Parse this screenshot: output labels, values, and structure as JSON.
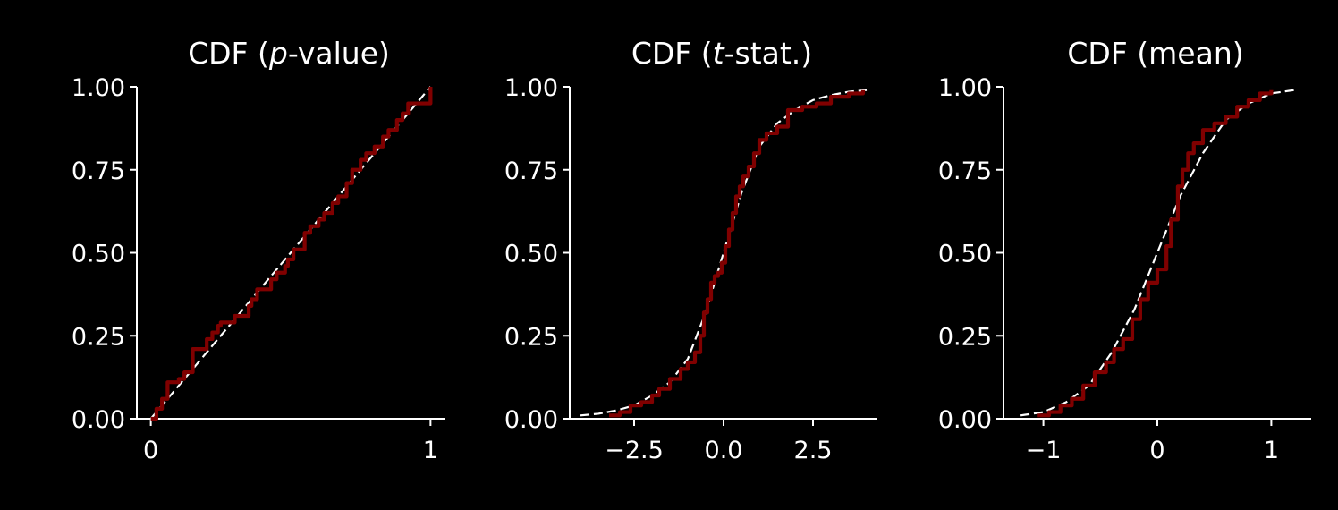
{
  "colors": {
    "background": "#000000",
    "axes": "#ffffff",
    "empirical": "#800000",
    "theoretical": "#ffffff"
  },
  "chart_data": [
    {
      "type": "line",
      "title": "CDF (p-value)",
      "title_parts": [
        "CDF (",
        "p",
        "-value)"
      ],
      "xlim": [
        -0.05,
        1.05
      ],
      "ylim": [
        0,
        1
      ],
      "xticks": [
        0,
        1
      ],
      "xtick_labels": [
        "0",
        "1"
      ],
      "yticks": [
        0,
        0.25,
        0.5,
        0.75,
        1
      ],
      "ytick_labels": [
        "0.00",
        "0.25",
        "0.50",
        "0.75",
        "1.00"
      ],
      "grid": false,
      "series": [
        {
          "style": "dashed",
          "color": "#ffffff",
          "x": [
            0,
            1
          ],
          "y": [
            0,
            1
          ]
        },
        {
          "style": "step",
          "color": "#800000",
          "x": [
            0.0,
            0.02,
            0.04,
            0.06,
            0.06,
            0.1,
            0.12,
            0.15,
            0.15,
            0.2,
            0.22,
            0.24,
            0.25,
            0.3,
            0.35,
            0.36,
            0.38,
            0.43,
            0.45,
            0.48,
            0.49,
            0.51,
            0.55,
            0.57,
            0.6,
            0.62,
            0.65,
            0.67,
            0.7,
            0.72,
            0.75,
            0.77,
            0.8,
            0.83,
            0.85,
            0.88,
            0.9,
            0.92,
            0.97,
            1.0
          ],
          "y": [
            0.0,
            0.03,
            0.06,
            0.08,
            0.11,
            0.12,
            0.14,
            0.15,
            0.21,
            0.24,
            0.26,
            0.28,
            0.29,
            0.31,
            0.34,
            0.36,
            0.39,
            0.42,
            0.44,
            0.46,
            0.48,
            0.51,
            0.56,
            0.58,
            0.6,
            0.62,
            0.65,
            0.67,
            0.71,
            0.75,
            0.78,
            0.8,
            0.82,
            0.85,
            0.87,
            0.9,
            0.92,
            0.95,
            0.95,
            1.0
          ]
        }
      ]
    },
    {
      "type": "line",
      "title": "CDF (t-stat.)",
      "title_parts": [
        "CDF (",
        "t",
        "-stat.)"
      ],
      "xlim": [
        -4.3,
        4.3
      ],
      "ylim": [
        0,
        1
      ],
      "xticks": [
        -2.5,
        0,
        2.5
      ],
      "xtick_labels": [
        "−2.5",
        "0.0",
        "2.5"
      ],
      "yticks": [
        0,
        0.25,
        0.5,
        0.75,
        1
      ],
      "ytick_labels": [
        "0.00",
        "0.25",
        "0.50",
        "0.75",
        "1.00"
      ],
      "grid": false,
      "series": [
        {
          "style": "dashed",
          "color": "#ffffff",
          "x": [
            -4.0,
            -3.5,
            -3.0,
            -2.5,
            -2.0,
            -1.5,
            -1.0,
            -0.5,
            0.0,
            0.5,
            1.0,
            1.5,
            2.0,
            2.5,
            3.0,
            3.5,
            4.0
          ],
          "y": [
            0.01,
            0.015,
            0.025,
            0.04,
            0.07,
            0.11,
            0.18,
            0.32,
            0.5,
            0.68,
            0.82,
            0.89,
            0.93,
            0.96,
            0.975,
            0.985,
            0.99
          ]
        },
        {
          "style": "step",
          "color": "#800000",
          "x": [
            -3.2,
            -2.9,
            -2.6,
            -2.3,
            -2.0,
            -1.8,
            -1.5,
            -1.2,
            -1.0,
            -0.8,
            -0.65,
            -0.55,
            -0.45,
            -0.35,
            -0.25,
            -0.15,
            -0.05,
            0.05,
            0.15,
            0.25,
            0.35,
            0.45,
            0.55,
            0.7,
            0.85,
            1.0,
            1.2,
            1.5,
            1.8,
            2.2,
            2.6,
            3.0,
            3.5,
            3.9
          ],
          "y": [
            0.01,
            0.02,
            0.04,
            0.05,
            0.07,
            0.09,
            0.12,
            0.15,
            0.17,
            0.2,
            0.25,
            0.32,
            0.36,
            0.41,
            0.43,
            0.44,
            0.47,
            0.52,
            0.57,
            0.62,
            0.67,
            0.7,
            0.73,
            0.76,
            0.8,
            0.84,
            0.86,
            0.88,
            0.93,
            0.94,
            0.95,
            0.97,
            0.98,
            0.99
          ]
        }
      ]
    },
    {
      "type": "line",
      "title": "CDF (mean)",
      "title_parts": [
        "CDF (mean)"
      ],
      "xlim": [
        -1.35,
        1.35
      ],
      "ylim": [
        0,
        1
      ],
      "xticks": [
        -1,
        0,
        1
      ],
      "xtick_labels": [
        "−1",
        "0",
        "1"
      ],
      "yticks": [
        0,
        0.25,
        0.5,
        0.75,
        1
      ],
      "ytick_labels": [
        "0.00",
        "0.25",
        "0.50",
        "0.75",
        "1.00"
      ],
      "grid": false,
      "series": [
        {
          "style": "dashed",
          "color": "#ffffff",
          "x": [
            -1.2,
            -1.0,
            -0.8,
            -0.6,
            -0.4,
            -0.2,
            0.0,
            0.2,
            0.4,
            0.6,
            0.8,
            1.0,
            1.2
          ],
          "y": [
            0.01,
            0.02,
            0.05,
            0.1,
            0.2,
            0.33,
            0.5,
            0.67,
            0.8,
            0.9,
            0.95,
            0.98,
            0.99
          ]
        },
        {
          "style": "step",
          "color": "#800000",
          "x": [
            -1.05,
            -0.95,
            -0.85,
            -0.75,
            -0.65,
            -0.55,
            -0.45,
            -0.38,
            -0.3,
            -0.22,
            -0.15,
            -0.08,
            0.0,
            0.08,
            0.12,
            0.18,
            0.22,
            0.27,
            0.32,
            0.4,
            0.5,
            0.6,
            0.7,
            0.8,
            0.9,
            1.0
          ],
          "y": [
            0.01,
            0.02,
            0.04,
            0.06,
            0.1,
            0.14,
            0.17,
            0.21,
            0.24,
            0.3,
            0.36,
            0.41,
            0.45,
            0.52,
            0.6,
            0.7,
            0.75,
            0.8,
            0.83,
            0.87,
            0.89,
            0.91,
            0.94,
            0.96,
            0.98,
            0.99
          ]
        }
      ]
    }
  ]
}
